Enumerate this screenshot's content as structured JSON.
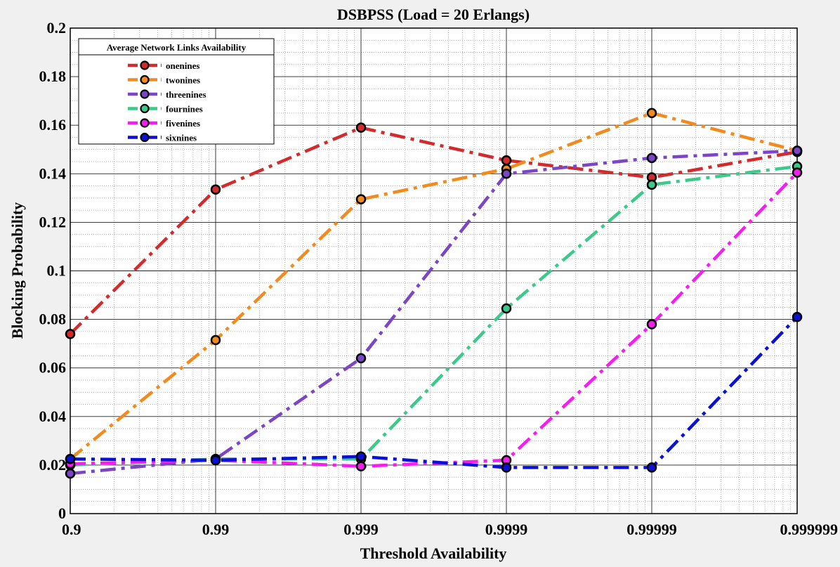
{
  "chart_data": {
    "type": "line",
    "title": "DSBPSS (Load  = 20 Erlangs)",
    "xlabel": "Threshold Availability",
    "ylabel": "Blocking Probability",
    "categories": [
      "0.9",
      "0.99",
      "0.999",
      "0.9999",
      "0.99999",
      "0.999999"
    ],
    "ylim": [
      0,
      0.2
    ],
    "yticks": [
      "0",
      "0.02",
      "0.04",
      "0.06",
      "0.08",
      "0.1",
      "0.12",
      "0.14",
      "0.16",
      "0.18",
      "0.2"
    ],
    "grid": true,
    "minor_grid": true,
    "legend": {
      "title": "Average Network Links Availability",
      "placement": "top-left"
    },
    "series": [
      {
        "name": "onenines",
        "color": "#d22b2b",
        "values": [
          0.074,
          0.1335,
          0.159,
          0.1455,
          0.1385,
          0.149
        ]
      },
      {
        "name": "twonines",
        "color": "#f28a1e",
        "values": [
          0.0225,
          0.0715,
          0.1295,
          0.142,
          0.165,
          0.1495
        ]
      },
      {
        "name": "threenines",
        "color": "#7b45c6",
        "values": [
          0.0165,
          0.0225,
          0.064,
          0.14,
          0.1465,
          0.1495
        ]
      },
      {
        "name": "fournines",
        "color": "#3cc98a",
        "values": [
          0.02,
          0.0225,
          0.0225,
          0.0845,
          0.1355,
          0.143
        ]
      },
      {
        "name": "fivenines",
        "color": "#f51df0",
        "values": [
          0.0205,
          0.022,
          0.0195,
          0.022,
          0.078,
          0.1405
        ]
      },
      {
        "name": "sixnines",
        "color": "#0b10d6",
        "values": [
          0.0225,
          0.022,
          0.0235,
          0.019,
          0.019,
          0.081
        ]
      }
    ]
  }
}
